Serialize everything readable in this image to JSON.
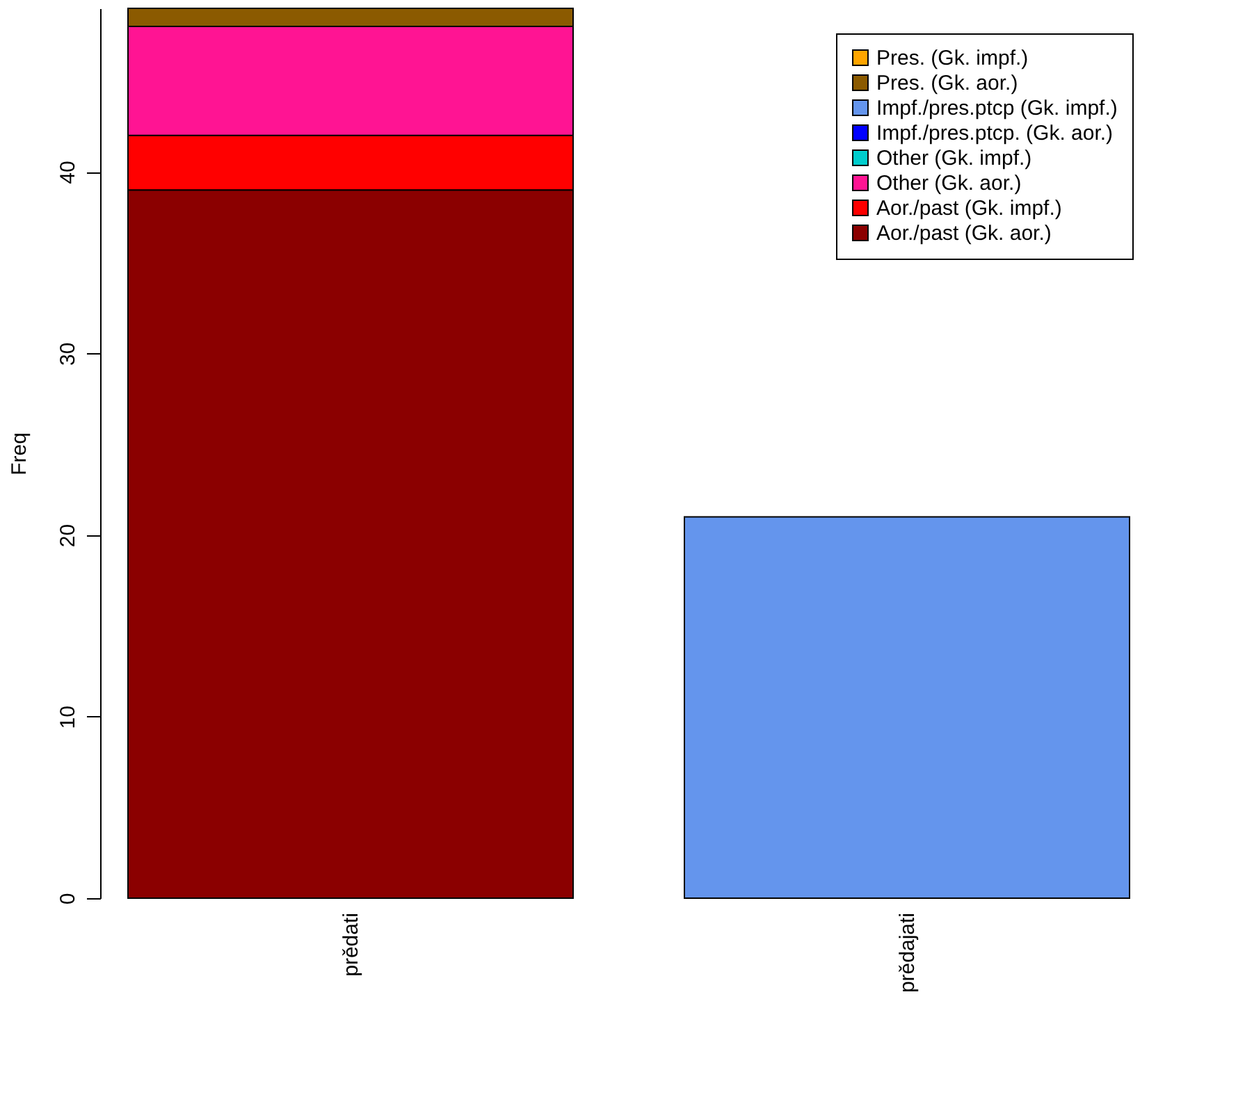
{
  "chart_data": {
    "type": "bar",
    "stacked": true,
    "ylabel": "Freq",
    "categories": [
      "prědati",
      "prědajati"
    ],
    "series": [
      {
        "name": "Aor./past (Gk. aor.)",
        "color": "#8b0000",
        "values": [
          39,
          0
        ]
      },
      {
        "name": "Aor./past (Gk. impf.)",
        "color": "#ff0000",
        "values": [
          3,
          0
        ]
      },
      {
        "name": "Other (Gk. aor.)",
        "color": "#ff1493",
        "values": [
          6,
          0
        ]
      },
      {
        "name": "Other (Gk. impf.)",
        "color": "#00cdcd",
        "values": [
          0,
          0
        ]
      },
      {
        "name": "Impf./pres.ptcp. (Gk. aor.)",
        "color": "#0000ff",
        "values": [
          0,
          0
        ]
      },
      {
        "name": "Impf./pres.ptcp (Gk. impf.)",
        "color": "#6495ed",
        "values": [
          0,
          21
        ]
      },
      {
        "name": "Pres. (Gk. aor.)",
        "color": "#8b5a00",
        "values": [
          1,
          0
        ]
      },
      {
        "name": "Pres. (Gk. impf.)",
        "color": "#ffa500",
        "values": [
          0,
          0
        ]
      }
    ],
    "ylim": [
      0,
      49
    ],
    "yticks": [
      0,
      10,
      20,
      30,
      40
    ],
    "grid": false,
    "legend": "top right"
  }
}
